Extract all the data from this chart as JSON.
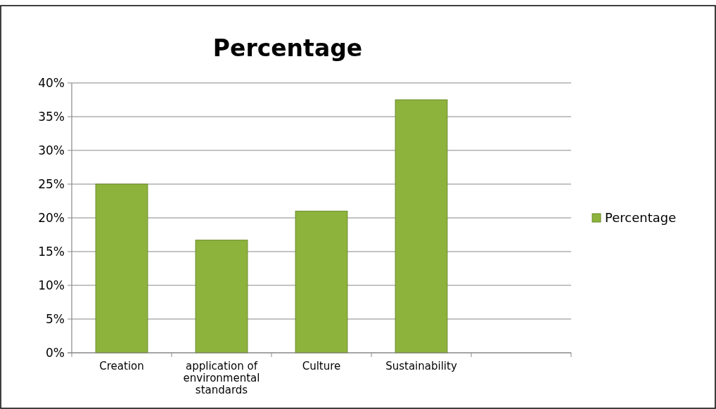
{
  "chart_data": {
    "type": "bar",
    "title": "Percentage",
    "categories": [
      "Creation",
      "application of environmental standards",
      "Culture",
      "Sustainability",
      null
    ],
    "series": [
      {
        "name": "Percentage",
        "color": "#8db33c",
        "values": [
          25,
          16.7,
          21,
          37.5,
          null
        ]
      }
    ],
    "ylim": [
      0,
      40
    ],
    "yticks": [
      {
        "value": 0,
        "label": "0%"
      },
      {
        "value": 5,
        "label": "5%"
      },
      {
        "value": 10,
        "label": "10%"
      },
      {
        "value": 15,
        "label": "15%"
      },
      {
        "value": 20,
        "label": "20%"
      },
      {
        "value": 25,
        "label": "25%"
      },
      {
        "value": 30,
        "label": "30%"
      },
      {
        "value": 35,
        "label": "35%"
      },
      {
        "value": 40,
        "label": "40%"
      }
    ],
    "grid": "y",
    "legend": "right"
  }
}
